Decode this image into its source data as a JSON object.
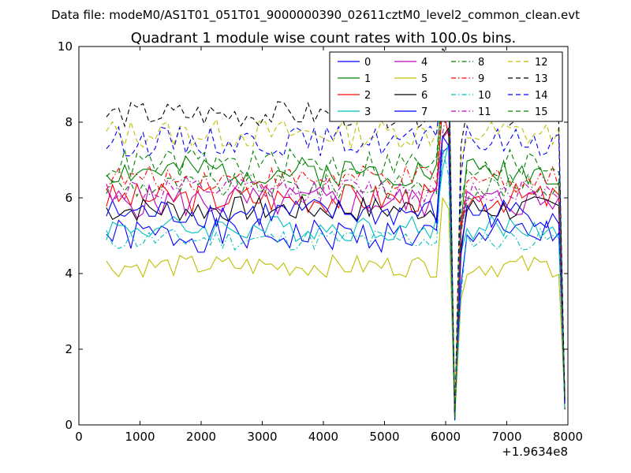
{
  "chart_data": {
    "type": "line",
    "suptitle": "Data file: modeM0/AS1T01_051T01_9000000390_02611cztM0_level2_common_clean.evt",
    "title": "Quadrant 1 module wise count rates with 100.0s bins.",
    "xlabel": "",
    "ylabel": "",
    "xlim": [
      0,
      8000
    ],
    "ylim": [
      0,
      10
    ],
    "x_offset_label": "+1.9634e8",
    "x_ticks": [
      "0",
      "1000",
      "2000",
      "3000",
      "4000",
      "5000",
      "6000",
      "7000",
      "8000"
    ],
    "y_ticks": [
      "0",
      "2",
      "4",
      "6",
      "8",
      "10"
    ],
    "grid": false,
    "legend_position": "top-right",
    "x_start": 450,
    "x_step": 100,
    "x_end": 7950,
    "dip_x": [
      6150,
      7950
    ],
    "series": [
      {
        "name": "0",
        "color": "#0000ff",
        "dash": "solid",
        "base": 5.0,
        "amp": 0.45,
        "seed": 1
      },
      {
        "name": "1",
        "color": "#008000",
        "dash": "solid",
        "base": 6.7,
        "amp": 0.4,
        "seed": 2
      },
      {
        "name": "2",
        "color": "#ff0000",
        "dash": "solid",
        "base": 6.0,
        "amp": 0.4,
        "seed": 3
      },
      {
        "name": "3",
        "color": "#00bfbf",
        "dash": "solid",
        "base": 5.2,
        "amp": 0.35,
        "seed": 4
      },
      {
        "name": "4",
        "color": "#bf00bf",
        "dash": "solid",
        "base": 5.9,
        "amp": 0.45,
        "seed": 5
      },
      {
        "name": "5",
        "color": "#bfbf00",
        "dash": "solid",
        "base": 4.2,
        "amp": 0.3,
        "seed": 6
      },
      {
        "name": "6",
        "color": "#000000",
        "dash": "solid",
        "base": 5.7,
        "amp": 0.35,
        "seed": 7
      },
      {
        "name": "7",
        "color": "#0000ff",
        "dash": "solid",
        "base": 5.6,
        "amp": 0.4,
        "seed": 8
      },
      {
        "name": "8",
        "color": "#008000",
        "dash": "dashdot",
        "base": 6.3,
        "amp": 0.35,
        "seed": 9
      },
      {
        "name": "9",
        "color": "#ff0000",
        "dash": "dashdot",
        "base": 6.5,
        "amp": 0.35,
        "seed": 10
      },
      {
        "name": "10",
        "color": "#00bfbf",
        "dash": "dashdot",
        "base": 4.9,
        "amp": 0.3,
        "seed": 11
      },
      {
        "name": "11",
        "color": "#bf00bf",
        "dash": "dashdot",
        "base": 6.2,
        "amp": 0.35,
        "seed": 12
      },
      {
        "name": "12",
        "color": "#bfbf00",
        "dash": "dashed",
        "base": 7.7,
        "amp": 0.4,
        "seed": 13
      },
      {
        "name": "13",
        "color": "#000000",
        "dash": "dashed",
        "base": 8.2,
        "amp": 0.35,
        "seed": 14
      },
      {
        "name": "14",
        "color": "#0000ff",
        "dash": "dashed",
        "base": 7.5,
        "amp": 0.4,
        "seed": 15
      },
      {
        "name": "15",
        "color": "#008000",
        "dash": "dashed",
        "base": 6.9,
        "amp": 0.4,
        "seed": 16
      }
    ]
  }
}
